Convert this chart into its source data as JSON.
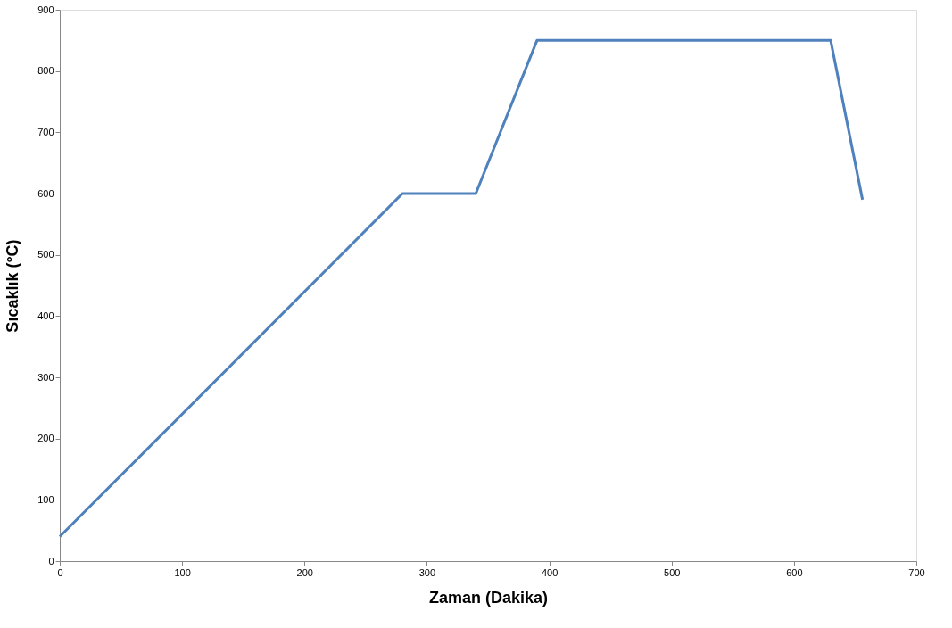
{
  "chart_data": {
    "type": "line",
    "xlabel": "Zaman (Dakika)",
    "ylabel": "Sıcaklık (°C)",
    "x": [
      0,
      280,
      340,
      390,
      630,
      656
    ],
    "series": [
      {
        "color": "#4f81bd",
        "values": [
          40,
          600,
          600,
          850,
          850,
          590
        ]
      }
    ],
    "xlim": [
      0,
      700
    ],
    "xticks": [
      0,
      100,
      200,
      300,
      400,
      500,
      600,
      700
    ],
    "ylim": [
      0,
      900
    ],
    "yticks": [
      0,
      100,
      200,
      300,
      400,
      500,
      600,
      700,
      800,
      900
    ],
    "grid": false,
    "legend": false,
    "marker": "none",
    "line_style": "solid"
  }
}
